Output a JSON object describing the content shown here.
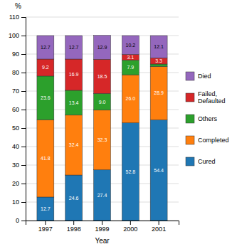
{
  "chart_data": {
    "type": "bar",
    "stacked": true,
    "categories": [
      "1997",
      "1998",
      "1999",
      "2000",
      "2001"
    ],
    "series": [
      {
        "name": "Cured",
        "values": [
          12.7,
          24.6,
          27.4,
          52.8,
          54.4
        ]
      },
      {
        "name": "Completed",
        "values": [
          41.8,
          32.4,
          32.3,
          26.0,
          28.9
        ],
        "value_labels": [
          "41.8",
          "32.4",
          "32.3",
          "26.0",
          "28.9"
        ]
      },
      {
        "name": "Others",
        "values": [
          23.6,
          13.4,
          9.0,
          7.9,
          1.3
        ],
        "value_labels": [
          "23.6",
          "13.4",
          "9.0",
          "7.9",
          null
        ]
      },
      {
        "name": "Failed,\nDefaulted",
        "values": [
          9.2,
          16.9,
          18.5,
          3.1,
          3.3
        ]
      },
      {
        "name": "Died",
        "values": [
          12.7,
          12.7,
          12.9,
          10.2,
          12.1
        ]
      }
    ],
    "xlabel": "Year",
    "ylabel": "%",
    "ylim": [
      0,
      110
    ],
    "yticks": [
      0,
      10,
      20,
      30,
      40,
      50,
      60,
      70,
      80,
      90,
      100,
      110
    ],
    "grid": true,
    "legend": "right",
    "data_labels": true
  }
}
